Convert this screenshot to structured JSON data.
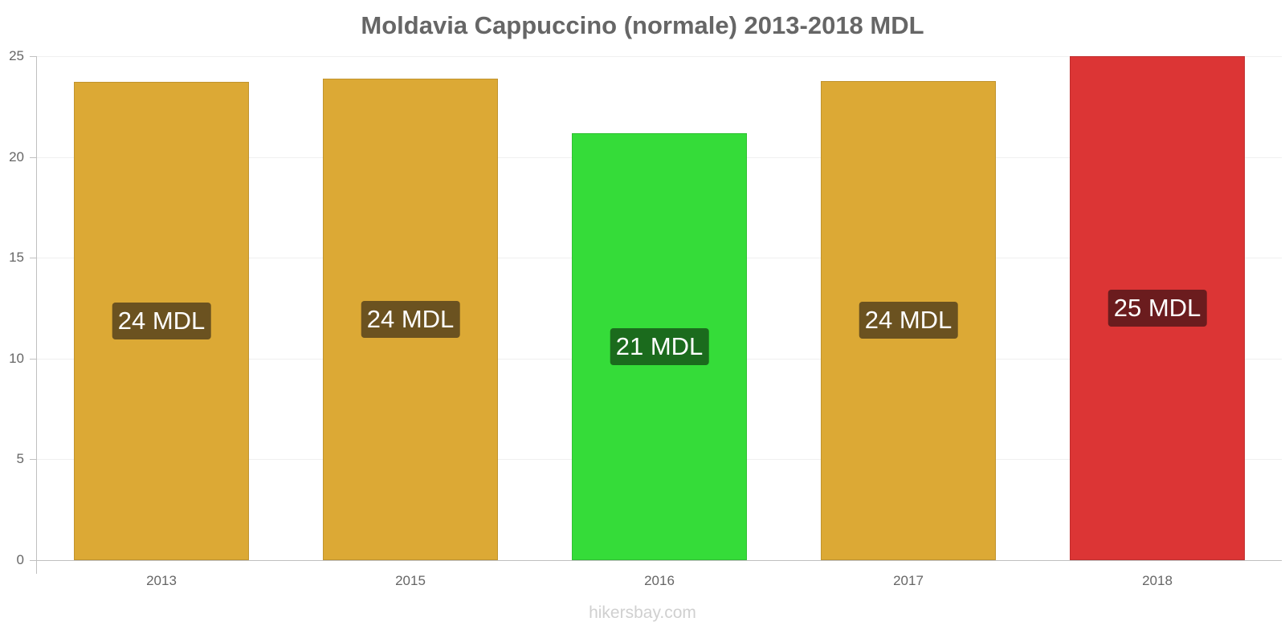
{
  "chart_data": {
    "type": "bar",
    "title": "Moldavia Cappuccino (normale) 2013-2018 MDL",
    "xlabel": "",
    "ylabel": "",
    "ylim": [
      0,
      25
    ],
    "yticks": [
      "0",
      "5",
      "10",
      "15",
      "20",
      "25"
    ],
    "grid": true,
    "categories": [
      "2013",
      "2015",
      "2016",
      "2017",
      "2018"
    ],
    "values": [
      23.73,
      23.89,
      21.18,
      23.77,
      25.0
    ],
    "data_labels": [
      "24 MDL",
      "24 MDL",
      "21 MDL",
      "24 MDL",
      "25 MDL"
    ],
    "bar_colors": [
      "#dca935",
      "#dca935",
      "#35dc39",
      "#dca935",
      "#dc3535"
    ],
    "label_bg_colors": [
      "#6b5220",
      "#6b5220",
      "#1b6b1d",
      "#6b5220",
      "#6b1c1e"
    ]
  },
  "watermark": "hikersbay.com"
}
